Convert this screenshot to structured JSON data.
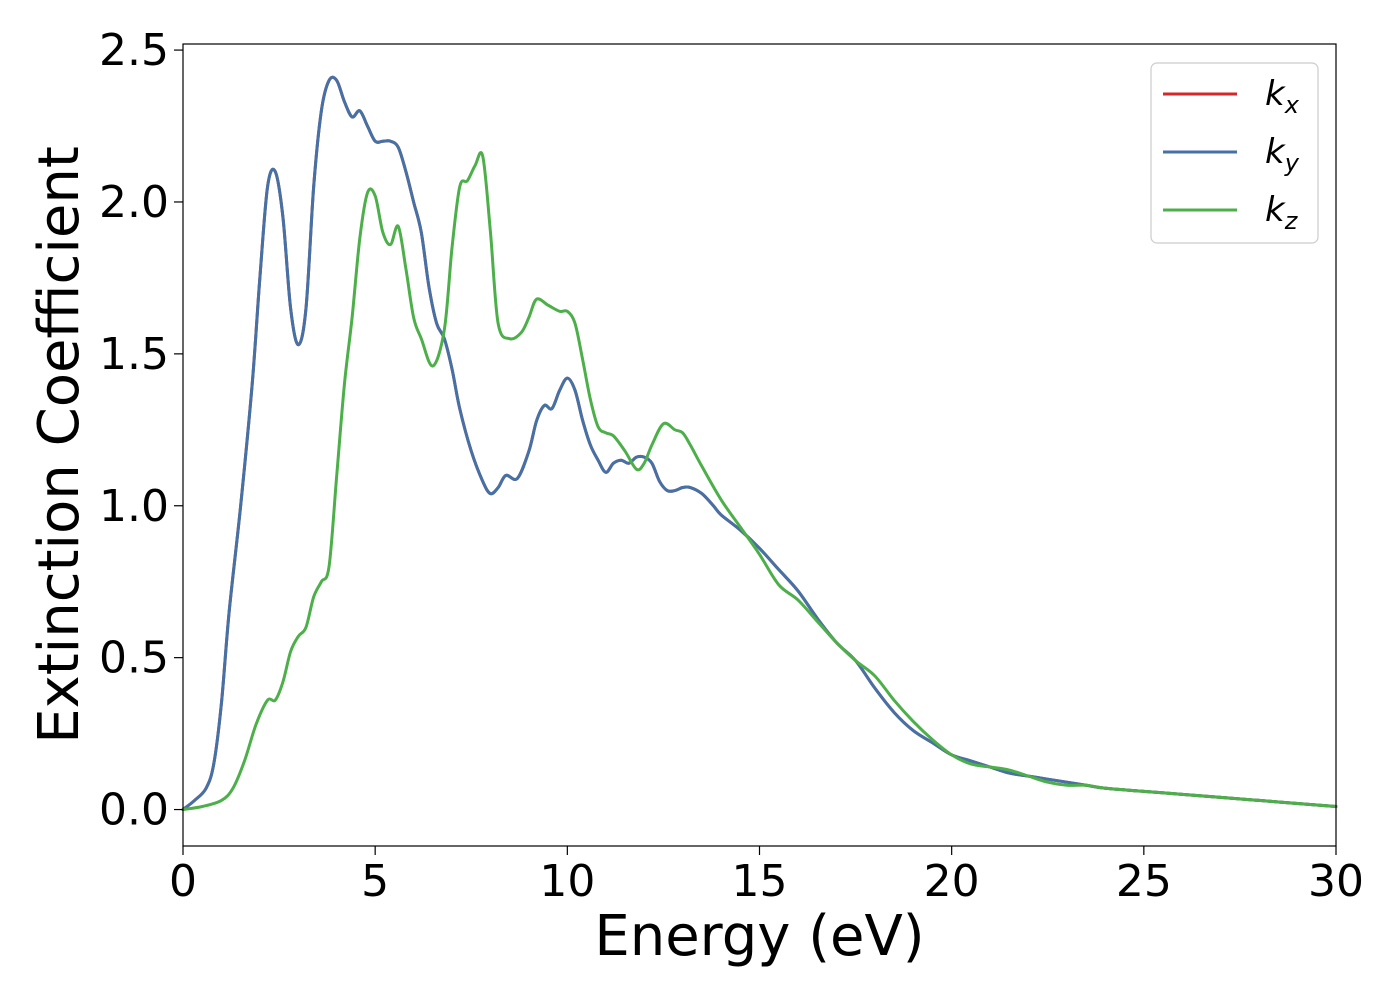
{
  "chart_data": {
    "type": "line",
    "xlabel": "Energy (eV)",
    "ylabel": "Extinction Coefficient",
    "xlim": [
      0,
      30
    ],
    "ylim": [
      -0.12,
      2.52
    ],
    "xticks": [
      0,
      5,
      10,
      15,
      20,
      25,
      30
    ],
    "xtick_labels": [
      "0",
      "5",
      "10",
      "15",
      "20",
      "25",
      "30"
    ],
    "yticks": [
      0.0,
      0.5,
      1.0,
      1.5,
      2.0,
      2.5
    ],
    "ytick_labels": [
      "0.0",
      "0.5",
      "1.0",
      "1.5",
      "2.0",
      "2.5"
    ],
    "grid": false,
    "legend_position": "top-right",
    "series": [
      {
        "name": "k_x",
        "legend_base": "k",
        "legend_sub": "x",
        "color": "#d62728",
        "x": [
          0,
          0.3,
          0.6,
          0.8,
          1.0,
          1.2,
          1.5,
          1.8,
          2.0,
          2.2,
          2.4,
          2.6,
          2.8,
          3.0,
          3.2,
          3.4,
          3.6,
          3.8,
          4.0,
          4.2,
          4.4,
          4.6,
          4.8,
          5.0,
          5.2,
          5.4,
          5.6,
          5.8,
          6.0,
          6.2,
          6.4,
          6.6,
          6.8,
          7.0,
          7.2,
          7.5,
          7.8,
          8.0,
          8.2,
          8.4,
          8.7,
          9.0,
          9.2,
          9.4,
          9.6,
          9.8,
          10.0,
          10.2,
          10.4,
          10.6,
          10.8,
          11.0,
          11.2,
          11.4,
          11.6,
          11.8,
          12.0,
          12.2,
          12.4,
          12.6,
          12.8,
          13.0,
          13.2,
          13.5,
          13.8,
          14.0,
          14.5,
          15.0,
          15.5,
          16.0,
          16.5,
          17.0,
          17.5,
          18.0,
          18.5,
          19.0,
          19.5,
          20.0,
          20.5,
          21.0,
          21.5,
          22.0,
          22.5,
          23.0,
          23.5,
          24.0,
          25.0,
          26.0,
          27.0,
          28.0,
          29.0,
          30.0
        ],
        "y": [
          0.0,
          0.03,
          0.07,
          0.15,
          0.35,
          0.65,
          1.0,
          1.4,
          1.75,
          2.05,
          2.1,
          1.95,
          1.65,
          1.53,
          1.65,
          2.05,
          2.3,
          2.4,
          2.4,
          2.33,
          2.28,
          2.3,
          2.25,
          2.2,
          2.2,
          2.2,
          2.18,
          2.1,
          2.0,
          1.9,
          1.72,
          1.6,
          1.55,
          1.45,
          1.32,
          1.18,
          1.08,
          1.04,
          1.06,
          1.1,
          1.09,
          1.18,
          1.28,
          1.33,
          1.32,
          1.38,
          1.42,
          1.38,
          1.28,
          1.2,
          1.15,
          1.11,
          1.14,
          1.15,
          1.14,
          1.16,
          1.16,
          1.14,
          1.08,
          1.05,
          1.05,
          1.06,
          1.06,
          1.04,
          1.0,
          0.97,
          0.92,
          0.86,
          0.79,
          0.72,
          0.63,
          0.55,
          0.49,
          0.4,
          0.32,
          0.26,
          0.22,
          0.18,
          0.16,
          0.14,
          0.12,
          0.11,
          0.1,
          0.09,
          0.08,
          0.07,
          0.06,
          0.05,
          0.04,
          0.03,
          0.02,
          0.01
        ]
      },
      {
        "name": "k_y",
        "legend_base": "k",
        "legend_sub": "y",
        "color": "#4472a6",
        "x": [
          0,
          0.3,
          0.6,
          0.8,
          1.0,
          1.2,
          1.5,
          1.8,
          2.0,
          2.2,
          2.4,
          2.6,
          2.8,
          3.0,
          3.2,
          3.4,
          3.6,
          3.8,
          4.0,
          4.2,
          4.4,
          4.6,
          4.8,
          5.0,
          5.2,
          5.4,
          5.6,
          5.8,
          6.0,
          6.2,
          6.4,
          6.6,
          6.8,
          7.0,
          7.2,
          7.5,
          7.8,
          8.0,
          8.2,
          8.4,
          8.7,
          9.0,
          9.2,
          9.4,
          9.6,
          9.8,
          10.0,
          10.2,
          10.4,
          10.6,
          10.8,
          11.0,
          11.2,
          11.4,
          11.6,
          11.8,
          12.0,
          12.2,
          12.4,
          12.6,
          12.8,
          13.0,
          13.2,
          13.5,
          13.8,
          14.0,
          14.5,
          15.0,
          15.5,
          16.0,
          16.5,
          17.0,
          17.5,
          18.0,
          18.5,
          19.0,
          19.5,
          20.0,
          20.5,
          21.0,
          21.5,
          22.0,
          22.5,
          23.0,
          23.5,
          24.0,
          25.0,
          26.0,
          27.0,
          28.0,
          29.0,
          30.0
        ],
        "y": [
          0.0,
          0.03,
          0.07,
          0.15,
          0.35,
          0.65,
          1.0,
          1.4,
          1.75,
          2.05,
          2.1,
          1.95,
          1.65,
          1.53,
          1.65,
          2.05,
          2.3,
          2.4,
          2.4,
          2.33,
          2.28,
          2.3,
          2.25,
          2.2,
          2.2,
          2.2,
          2.18,
          2.1,
          2.0,
          1.9,
          1.72,
          1.6,
          1.55,
          1.45,
          1.32,
          1.18,
          1.08,
          1.04,
          1.06,
          1.1,
          1.09,
          1.18,
          1.28,
          1.33,
          1.32,
          1.38,
          1.42,
          1.38,
          1.28,
          1.2,
          1.15,
          1.11,
          1.14,
          1.15,
          1.14,
          1.16,
          1.16,
          1.14,
          1.08,
          1.05,
          1.05,
          1.06,
          1.06,
          1.04,
          1.0,
          0.97,
          0.92,
          0.86,
          0.79,
          0.72,
          0.63,
          0.55,
          0.49,
          0.4,
          0.32,
          0.26,
          0.22,
          0.18,
          0.16,
          0.14,
          0.12,
          0.11,
          0.1,
          0.09,
          0.08,
          0.07,
          0.06,
          0.05,
          0.04,
          0.03,
          0.02,
          0.01
        ]
      },
      {
        "name": "k_z",
        "legend_base": "k",
        "legend_sub": "z",
        "color": "#4daf4a",
        "x": [
          0,
          0.5,
          1.0,
          1.3,
          1.6,
          1.9,
          2.2,
          2.4,
          2.6,
          2.8,
          3.0,
          3.2,
          3.4,
          3.6,
          3.8,
          4.0,
          4.2,
          4.4,
          4.6,
          4.8,
          5.0,
          5.2,
          5.4,
          5.6,
          5.8,
          6.0,
          6.2,
          6.5,
          6.8,
          7.0,
          7.2,
          7.4,
          7.6,
          7.8,
          8.0,
          8.2,
          8.5,
          8.8,
          9.0,
          9.2,
          9.5,
          9.8,
          10.0,
          10.2,
          10.4,
          10.6,
          10.8,
          11.0,
          11.2,
          11.5,
          11.8,
          12.0,
          12.2,
          12.5,
          12.8,
          13.0,
          13.2,
          13.5,
          14.0,
          14.5,
          15.0,
          15.5,
          16.0,
          16.5,
          17.0,
          17.5,
          18.0,
          18.5,
          19.0,
          19.5,
          20.0,
          20.5,
          21.0,
          21.5,
          22.0,
          22.5,
          23.0,
          23.5,
          24.0,
          25.0,
          26.0,
          27.0,
          28.0,
          29.0,
          30.0
        ],
        "y": [
          0.0,
          0.01,
          0.03,
          0.07,
          0.16,
          0.28,
          0.36,
          0.36,
          0.42,
          0.52,
          0.57,
          0.6,
          0.7,
          0.75,
          0.8,
          1.1,
          1.4,
          1.62,
          1.88,
          2.03,
          2.02,
          1.9,
          1.86,
          1.92,
          1.78,
          1.62,
          1.55,
          1.46,
          1.58,
          1.85,
          2.05,
          2.07,
          2.12,
          2.15,
          1.9,
          1.6,
          1.55,
          1.57,
          1.62,
          1.68,
          1.66,
          1.64,
          1.64,
          1.6,
          1.48,
          1.35,
          1.26,
          1.24,
          1.23,
          1.18,
          1.12,
          1.14,
          1.2,
          1.27,
          1.25,
          1.24,
          1.2,
          1.13,
          1.02,
          0.93,
          0.84,
          0.74,
          0.69,
          0.62,
          0.55,
          0.49,
          0.44,
          0.36,
          0.29,
          0.23,
          0.18,
          0.15,
          0.14,
          0.13,
          0.11,
          0.09,
          0.08,
          0.08,
          0.07,
          0.06,
          0.05,
          0.04,
          0.03,
          0.02,
          0.01
        ]
      }
    ]
  }
}
